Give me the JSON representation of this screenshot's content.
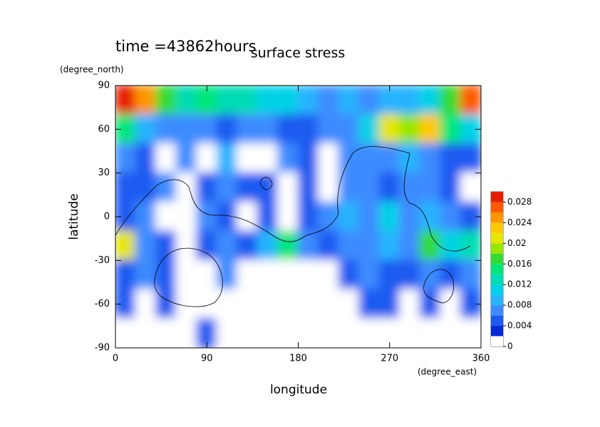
{
  "chart_data": {
    "type": "contour",
    "title": "surface stress",
    "subtitle": "time =43862hours",
    "x_label": "longitude",
    "x_unit": "(degree_east)",
    "y_label": "latitude",
    "y_unit": "(degree_north)",
    "xlim": [
      0,
      360
    ],
    "xticks": [
      0,
      90,
      180,
      270,
      360
    ],
    "ylim": [
      -90,
      90
    ],
    "yticks": [
      90,
      60,
      30,
      0,
      -30,
      -60,
      -90
    ],
    "x": [
      10,
      30,
      50,
      70,
      90,
      110,
      130,
      150,
      170,
      190,
      210,
      230,
      250,
      270,
      290,
      310,
      330,
      350
    ],
    "y": [
      80,
      60,
      40,
      20,
      0,
      -20,
      -40,
      -60,
      -80
    ],
    "z": [
      [
        0.028,
        0.024,
        0.016,
        0.012,
        0.014,
        0.012,
        0.012,
        0.01,
        0.01,
        0.008,
        0.006,
        0.008,
        0.006,
        0.008,
        0.008,
        0.01,
        0.016,
        0.026
      ],
      [
        0.014,
        0.008,
        0.006,
        0.006,
        0.006,
        0.004,
        0.006,
        0.006,
        0.004,
        0.004,
        0.006,
        0.006,
        0.01,
        0.02,
        0.018,
        0.022,
        0.014,
        0.01
      ],
      [
        0.006,
        0.004,
        0.001,
        0.006,
        0.001,
        0.008,
        0.001,
        0.001,
        0.006,
        0.004,
        0.001,
        0.006,
        0.006,
        0.006,
        0.008,
        0.006,
        0.004,
        0.004
      ],
      [
        0.004,
        0.004,
        0.006,
        0.001,
        0.004,
        0.006,
        0.004,
        0.004,
        0.001,
        0.004,
        0.001,
        0.006,
        0.006,
        0.004,
        0.006,
        0.006,
        0.004,
        0.001
      ],
      [
        0.004,
        0.006,
        0.001,
        0.001,
        0.006,
        0.004,
        0.001,
        0.004,
        0.001,
        0.004,
        0.006,
        0.008,
        0.006,
        0.01,
        0.006,
        0.008,
        0.006,
        0.004
      ],
      [
        0.02,
        0.006,
        0.004,
        0.001,
        0.004,
        0.006,
        0.004,
        0.008,
        0.014,
        0.006,
        0.004,
        0.006,
        0.006,
        0.008,
        0.006,
        0.016,
        0.01,
        0.012
      ],
      [
        0.004,
        0.006,
        0.004,
        0.001,
        0.001,
        0.006,
        0.001,
        0.001,
        0.001,
        0.001,
        0.001,
        0.004,
        0.006,
        0.004,
        0.004,
        0.006,
        0.004,
        0.006
      ],
      [
        0.004,
        0.001,
        0.004,
        0.001,
        0.001,
        0.001,
        0.001,
        0.001,
        0.001,
        0.001,
        0.001,
        0.001,
        0.004,
        0.004,
        0.001,
        0.004,
        0.001,
        0.004
      ],
      [
        0.001,
        0.001,
        0.001,
        0.001,
        0.004,
        0.001,
        0.001,
        0.001,
        0.001,
        0.001,
        0.001,
        0.001,
        0.001,
        0.001,
        0.001,
        0.001,
        0.001,
        0.001
      ]
    ],
    "levels": [
      0,
      0.002,
      0.004,
      0.006,
      0.008,
      0.01,
      0.012,
      0.014,
      0.016,
      0.018,
      0.02,
      0.022,
      0.024,
      0.026,
      0.028,
      0.03
    ],
    "colors": [
      "#ffffff",
      "#0028d8",
      "#1e5af0",
      "#3c8cff",
      "#28b4ff",
      "#00d2e6",
      "#00dcb4",
      "#00e678",
      "#32dc32",
      "#96e600",
      "#e6e600",
      "#ffc800",
      "#ff9600",
      "#ff5a00",
      "#e61e00"
    ],
    "clim": [
      0,
      0.03
    ],
    "cbticks": [
      0,
      0.004,
      0.008,
      0.012,
      0.016,
      0.02,
      0.024,
      0.028
    ]
  }
}
